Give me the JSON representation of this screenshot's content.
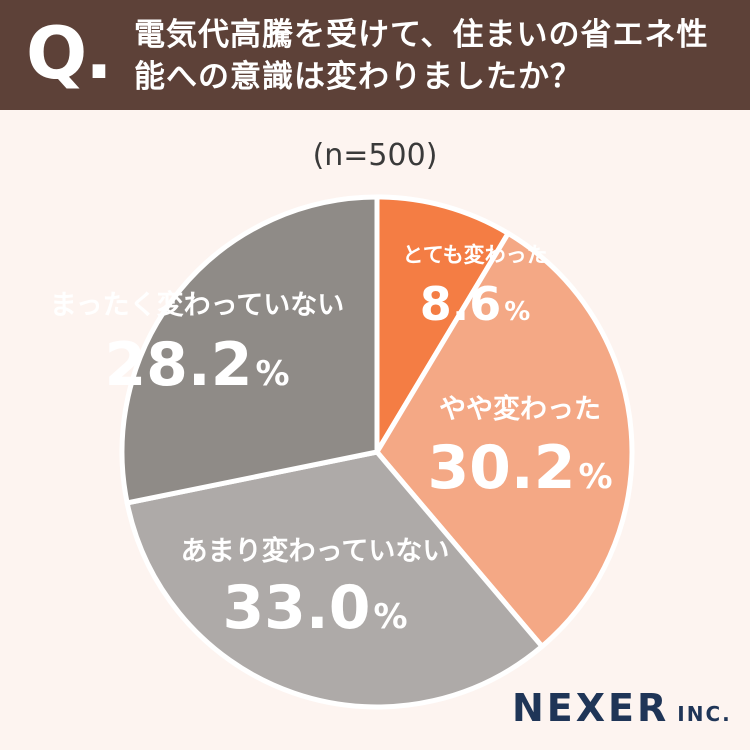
{
  "header": {
    "q_mark": "Q.",
    "question": "電気代高騰を受けて、住まいの省エネ性能への意識は変わりましたか？"
  },
  "sample": "(n=500)",
  "chart_data": {
    "type": "pie",
    "categories": [
      "とても変わった",
      "やや変わった",
      "あまり変わっていない",
      "まったく変わっていない"
    ],
    "values": [
      8.6,
      30.2,
      33.0,
      28.2
    ],
    "value_labels": [
      "8.6",
      "30.2",
      "33.0",
      "28.2"
    ],
    "unit": "%",
    "colors": [
      "#f47d44",
      "#f4a885",
      "#aeaaa8",
      "#8f8b87"
    ],
    "start": "top",
    "direction": "clockwise"
  },
  "logo": {
    "name": "NEXER",
    "suffix": "INC."
  }
}
